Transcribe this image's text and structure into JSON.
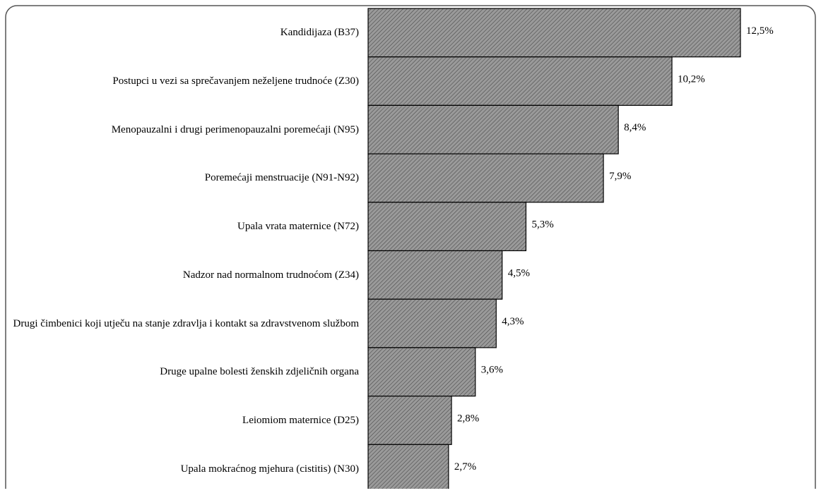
{
  "chart_data": {
    "type": "barh",
    "categories": [
      "Kandidijaza (B37)",
      "Postupci u vezi sa sprečavanjem neželjene trudnoće (Z30)",
      "Menopauzalni i drugi perimenopauzalni poremećaji (N95)",
      "Poremećaji menstruacije (N91-N92)",
      "Upala vrata maternice (N72)",
      "Nadzor nad normalnom trudnoćom (Z34)",
      "Drugi čimbenici koji utječu na stanje zdravlja i kontakt sa zdravstvenom službom",
      "Druge upalne bolesti ženskih zdjeličnih organa",
      "Leiomiom maternice (D25)",
      "Upala mokraćnog mjehura (cistitis) (N30)"
    ],
    "values": [
      12.5,
      10.2,
      8.4,
      7.9,
      5.3,
      4.5,
      4.3,
      3.6,
      2.8,
      2.7
    ],
    "value_labels": [
      "12,5%",
      "10,2%",
      "8,4%",
      "7,9%",
      "5,3%",
      "4,5%",
      "4,3%",
      "3,6%",
      "2,8%",
      "2,7%"
    ],
    "color": "#8c8c8c"
  }
}
